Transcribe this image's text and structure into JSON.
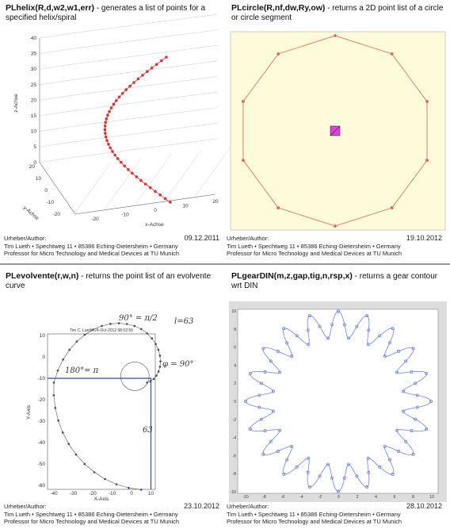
{
  "panels": [
    {
      "title": "PLhelix(R,d,w2,w1,err)",
      "description": " - generates a list of points for a specified helix/spiral",
      "author_label": "Urheber/Author:",
      "date": "09.12.2011",
      "address": "Tim Lueth • Spechtweg 11 • 85386 Eching-Dietersheim • Germany",
      "affiliation": "Professor for Micro Technology and Medical Devices at TU Munich",
      "plot": {
        "z_label": "z-Achse",
        "y_label": "y-Achse",
        "x_label": "x-Achse",
        "z_ticks": [
          40,
          35,
          30,
          25,
          20,
          15,
          10,
          5,
          0
        ],
        "y_ticks": [
          20,
          10,
          0,
          -10,
          -20
        ],
        "x_ticks": [
          -20,
          -10,
          0,
          10,
          20
        ]
      }
    },
    {
      "title": "PLcircle(R,nf,dw,Ry,ow)",
      "description": " - returns a 2D point list of a circle or circle segment",
      "author_label": "Urheber/Author:",
      "date": "19.10.2012",
      "address": "Tim Lueth • Spechtweg 11 • 85386 Eching-Dietersheim • Germany",
      "affiliation": "Professor for Micro Technology and Medical Devices at TU Munich"
    },
    {
      "title": "PLevolvente(r,w,n)",
      "description": " - returns the point list of an evolvente curve",
      "author_label": "Urheber/Author:",
      "date": "23.10.2012",
      "address": "Tim Lueth • Spechtweg 11 • 85386 Eching-Dietersheim • Germany",
      "affiliation": "Professor for Micro Technology and Medical Devices at TU Munich",
      "plot": {
        "stamp": "Tim C. Lueth: 24-Oct-2012 08:02:50",
        "notes": [
          "90° = π/2",
          "l=63",
          "180°= π",
          "φ = 90°",
          "63"
        ],
        "y_label": "Y-Axis",
        "x_label": "X-Axis",
        "y_ticks": [
          10,
          0,
          -10,
          -20,
          -30,
          -40,
          -50,
          -60
        ],
        "x_ticks": [
          -40,
          -30,
          -20,
          -10,
          0,
          10
        ]
      }
    },
    {
      "title": "PLgearDIN(m,z,gap,tig,n,rsp,x)",
      "description": " - returns a gear contour wrt DIN",
      "author_label": "Urheber/Author:",
      "date": "28.10.2012",
      "address": "Tim Lueth • Spechtweg 11 • 85386 Eching-Dietersheim • Germany",
      "affiliation": "Professor for Micro Technology and Medical Devices at TU Munich",
      "plot": {
        "y_ticks": [
          10,
          8,
          6,
          4,
          2,
          0,
          -2,
          -4,
          -6,
          -8,
          -10
        ],
        "x_ticks": [
          -10,
          -8,
          -6,
          -4,
          -2,
          0,
          2,
          4,
          6,
          8,
          10
        ]
      }
    }
  ]
}
